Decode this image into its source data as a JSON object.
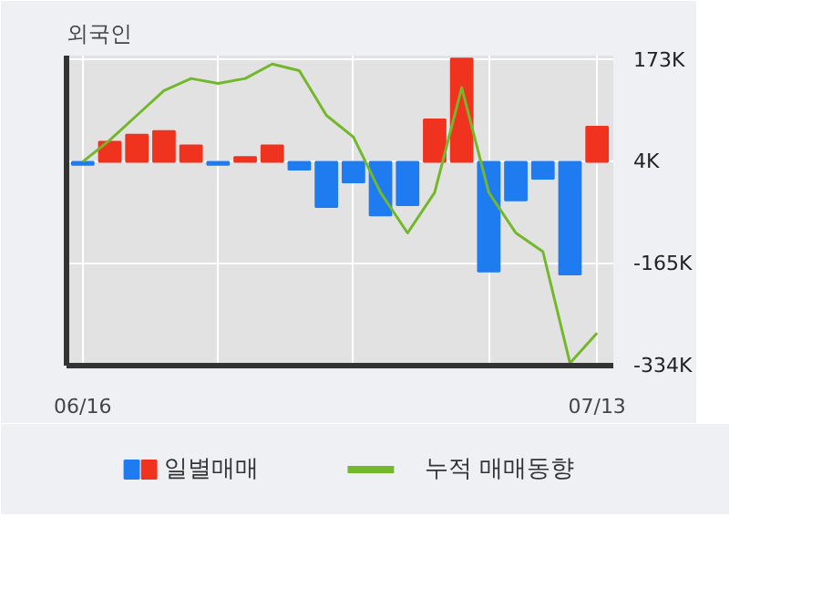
{
  "chart_data": {
    "type": "bar",
    "title": "외국인",
    "categories": [
      "06/16",
      null,
      null,
      null,
      null,
      null,
      null,
      null,
      null,
      null,
      null,
      null,
      null,
      null,
      null,
      null,
      null,
      null,
      null,
      "07/13"
    ],
    "series": [
      {
        "name": "일별매매",
        "type": "bar",
        "base": [
          4,
          4,
          4,
          4,
          4,
          4,
          4,
          4,
          4,
          4,
          4,
          4,
          4,
          4,
          4,
          4,
          4,
          4,
          4,
          4
        ],
        "values": [
          -5,
          33,
          45,
          51,
          27,
          -5,
          8,
          27,
          -13,
          -75,
          -34,
          -89,
          -72,
          70,
          171,
          -182,
          -64,
          -28,
          -187,
          58
        ],
        "colors": [
          "#1f7bf0",
          "#f0331e",
          "#f0331e",
          "#f0331e",
          "#f0331e",
          "#1f7bf0",
          "#f0331e",
          "#f0331e",
          "#1f7bf0",
          "#1f7bf0",
          "#1f7bf0",
          "#1f7bf0",
          "#1f7bf0",
          "#f0331e",
          "#f0331e",
          "#1f7bf0",
          "#1f7bf0",
          "#1f7bf0",
          "#1f7bf0",
          "#f0331e"
        ]
      },
      {
        "name": "누적 매매동향",
        "type": "line",
        "color": "#72b82a",
        "values": [
          4,
          40,
          81,
          122,
          142,
          134,
          142,
          166,
          155,
          81,
          45,
          -47,
          -114,
          -47,
          127,
          -47,
          -114,
          -145,
          -330,
          -280
        ]
      }
    ],
    "ylim": [
      -334,
      180
    ],
    "yticks": [
      {
        "value": 173,
        "label": "173K"
      },
      {
        "value": 4,
        "label": "4K"
      },
      {
        "value": -165,
        "label": "-165K"
      },
      {
        "value": -334,
        "label": "-334K"
      }
    ],
    "grid": true,
    "legend": "bottom",
    "marker": "none",
    "line_style": "solid"
  }
}
